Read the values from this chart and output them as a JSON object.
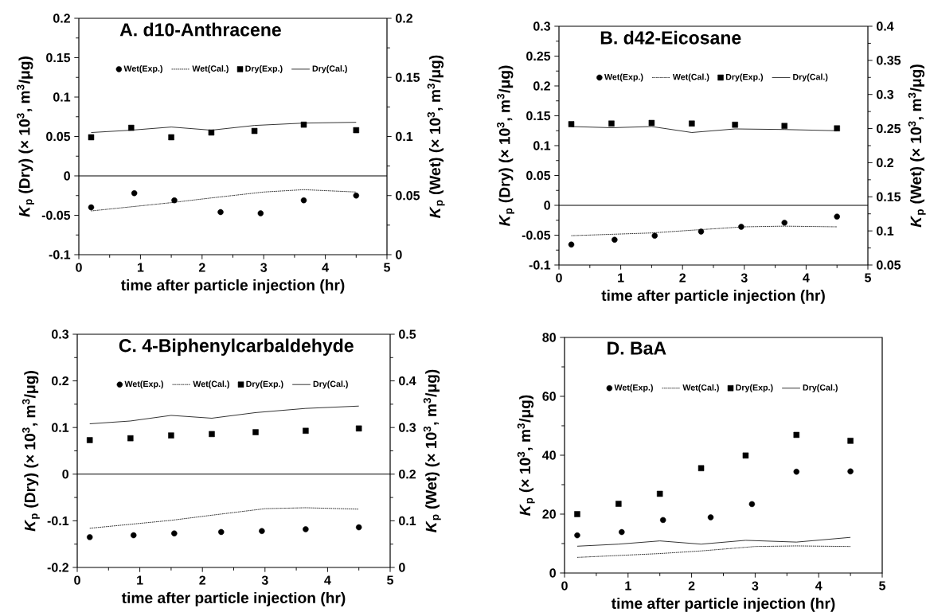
{
  "chart_data": [
    {
      "type": "line",
      "title": "A. d10-Anthracene",
      "xlabel": "time after particle injection (hr)",
      "ylabel": "*K*$_{p}$ (Dry) (× 10$^{3}$, m$^{3}$/μg)",
      "y2label": "*K*$_{p}$ (Wet) (× 10$^{3}$, m$^{3}$/μg)",
      "xlim": [
        0,
        5
      ],
      "xticks": [
        0,
        1,
        2,
        3,
        4,
        5
      ],
      "ylim": [
        -0.1,
        0.2
      ],
      "yticks": [
        -0.1,
        -0.05,
        0,
        0.05,
        0.1,
        0.15,
        0.2
      ],
      "y2lim": [
        0,
        0.2
      ],
      "y2ticks": [
        0,
        0.05,
        0.1,
        0.15,
        0.2
      ],
      "legend": "top",
      "ref_lines": [
        {
          "axis": "y",
          "value": 0,
          "color": "#000000"
        }
      ],
      "series": [
        {
          "name": "Wet(Exp.)",
          "type": "scatter",
          "marker": "circle",
          "axis": "y2",
          "color": "#000000",
          "x": [
            0.2,
            0.9,
            1.55,
            2.3,
            2.95,
            3.65,
            4.5
          ],
          "values": [
            0.04,
            0.052,
            0.046,
            0.036,
            0.035,
            0.046,
            0.05
          ]
        },
        {
          "name": "Wet(Cal.)",
          "line_style": "dotted",
          "axis": "y2",
          "color": "#000000",
          "x": [
            0.2,
            1.5,
            2.15,
            3.0,
            3.65,
            4.5
          ],
          "values": [
            0.037,
            0.044,
            0.048,
            0.053,
            0.055,
            0.053
          ]
        },
        {
          "name": "Dry(Exp.)",
          "type": "scatter",
          "marker": "square",
          "color": "#000000",
          "x": [
            0.2,
            0.85,
            1.5,
            2.15,
            2.85,
            3.65,
            4.5
          ],
          "values": [
            0.049,
            0.061,
            0.049,
            0.055,
            0.057,
            0.065,
            0.058
          ]
        },
        {
          "name": "Dry(Cal.)",
          "line_style": "solid",
          "color": "#000000",
          "x": [
            0.2,
            0.85,
            1.5,
            2.15,
            2.85,
            3.65,
            4.5
          ],
          "values": [
            0.055,
            0.058,
            0.062,
            0.058,
            0.064,
            0.067,
            0.068
          ]
        }
      ]
    },
    {
      "type": "line",
      "title": "B. d42-Eicosane",
      "xlabel": "time after particle injection (hr)",
      "ylabel": "*K*$_{p}$ (Dry) (× 10$^{3}$, m$^{3}$/μg)",
      "y2label": "*K*$_{p}$ (Wet) (× 10$^{3}$, m$^{3}$/μg)",
      "xlim": [
        0,
        5
      ],
      "xticks": [
        0,
        1,
        2,
        3,
        4,
        5
      ],
      "ylim": [
        -0.1,
        0.3
      ],
      "yticks": [
        -0.1,
        -0.05,
        0,
        0.05,
        0.1,
        0.15,
        0.2,
        0.25,
        0.3
      ],
      "y2lim": [
        0.05,
        0.4
      ],
      "y2ticks": [
        0.05,
        0.1,
        0.15,
        0.2,
        0.25,
        0.3,
        0.35,
        0.4
      ],
      "legend": "top",
      "ref_lines": [
        {
          "axis": "y",
          "value": 0,
          "color": "#000000"
        }
      ],
      "series": [
        {
          "name": "Wet(Exp.)",
          "type": "scatter",
          "marker": "circle",
          "axis": "y2",
          "color": "#000000",
          "x": [
            0.2,
            0.9,
            1.55,
            2.3,
            2.95,
            3.65,
            4.5
          ],
          "values": [
            0.08,
            0.087,
            0.093,
            0.099,
            0.106,
            0.112,
            0.121
          ]
        },
        {
          "name": "Wet(Cal.)",
          "line_style": "dotted",
          "axis": "y2",
          "color": "#000000",
          "x": [
            0.2,
            1.5,
            2.15,
            3.0,
            3.65,
            4.5
          ],
          "values": [
            0.093,
            0.097,
            0.101,
            0.106,
            0.107,
            0.106
          ]
        },
        {
          "name": "Dry(Exp.)",
          "type": "scatter",
          "marker": "square",
          "color": "#000000",
          "x": [
            0.2,
            0.85,
            1.5,
            2.15,
            2.85,
            3.65,
            4.5
          ],
          "values": [
            0.136,
            0.137,
            0.138,
            0.137,
            0.135,
            0.133,
            0.129
          ]
        },
        {
          "name": "Dry(Cal.)",
          "line_style": "solid",
          "color": "#000000",
          "x": [
            0.2,
            0.85,
            1.5,
            2.15,
            2.85,
            3.65,
            4.5
          ],
          "values": [
            0.132,
            0.13,
            0.132,
            0.122,
            0.128,
            0.127,
            0.125
          ]
        }
      ]
    },
    {
      "type": "line",
      "title": "C. 4-Biphenylcarbaldehyde",
      "xlabel": "time after particle injection (hr)",
      "ylabel": "*K*$_{p}$ (Dry) (× 10$^{3}$, m$^{3}$/μg)",
      "y2label": "*K*$_{p}$ (Wet) (× 10$^{3}$, m$^{3}$/μg)",
      "xlim": [
        0,
        5
      ],
      "xticks": [
        0,
        1,
        2,
        3,
        4,
        5
      ],
      "ylim": [
        -0.2,
        0.3
      ],
      "yticks": [
        -0.2,
        -0.1,
        0,
        0.1,
        0.2,
        0.3
      ],
      "y2lim": [
        0,
        0.5
      ],
      "y2ticks": [
        0,
        0.1,
        0.2,
        0.3,
        0.4,
        0.5
      ],
      "legend": "top",
      "ref_lines": [
        {
          "axis": "y",
          "value": 0,
          "color": "#000000"
        }
      ],
      "series": [
        {
          "name": "Wet(Exp.)",
          "type": "scatter",
          "marker": "circle",
          "axis": "y2",
          "color": "#000000",
          "x": [
            0.2,
            0.9,
            1.55,
            2.3,
            2.95,
            3.65,
            4.5
          ],
          "values": [
            0.065,
            0.069,
            0.073,
            0.076,
            0.078,
            0.082,
            0.086
          ]
        },
        {
          "name": "Wet(Cal.)",
          "line_style": "dotted",
          "axis": "y2",
          "color": "#000000",
          "x": [
            0.2,
            1.5,
            2.15,
            3.0,
            3.65,
            4.5
          ],
          "values": [
            0.084,
            0.101,
            0.112,
            0.126,
            0.128,
            0.125
          ]
        },
        {
          "name": "Dry(Exp.)",
          "type": "scatter",
          "marker": "square",
          "color": "#000000",
          "x": [
            0.2,
            0.85,
            1.5,
            2.15,
            2.85,
            3.65,
            4.5
          ],
          "values": [
            0.073,
            0.077,
            0.083,
            0.086,
            0.09,
            0.093,
            0.098
          ]
        },
        {
          "name": "Dry(Cal.)",
          "line_style": "solid",
          "color": "#000000",
          "x": [
            0.2,
            0.85,
            1.5,
            2.15,
            2.85,
            3.65,
            4.5
          ],
          "values": [
            0.108,
            0.114,
            0.126,
            0.12,
            0.132,
            0.141,
            0.146
          ]
        }
      ]
    },
    {
      "type": "line",
      "title": "D. BaA",
      "xlabel": "time after particle injection (hr)",
      "ylabel": "*K*$_{p}$ (× 10$^{3}$, m$^{3}$/μg)",
      "xlim": [
        0,
        5
      ],
      "xticks": [
        0,
        1,
        2,
        3,
        4,
        5
      ],
      "ylim": [
        0,
        80
      ],
      "yticks": [
        0,
        20,
        40,
        60,
        80
      ],
      "legend": "top",
      "series": [
        {
          "name": "Wet(Exp.)",
          "type": "scatter",
          "marker": "circle",
          "color": "#000000",
          "x": [
            0.2,
            0.9,
            1.55,
            2.3,
            2.95,
            3.65,
            4.5
          ],
          "values": [
            12.8,
            13.9,
            18.0,
            18.9,
            23.4,
            34.4,
            34.5
          ]
        },
        {
          "name": "Wet(Cal.)",
          "line_style": "dotted",
          "color": "#000000",
          "x": [
            0.2,
            1.5,
            2.15,
            3.0,
            3.65,
            4.5
          ],
          "values": [
            5.3,
            6.6,
            7.5,
            9.0,
            9.2,
            9.0
          ]
        },
        {
          "name": "Dry(Exp.)",
          "type": "scatter",
          "marker": "square",
          "color": "#000000",
          "x": [
            0.2,
            0.85,
            1.5,
            2.15,
            2.85,
            3.65,
            4.5
          ],
          "values": [
            20.0,
            23.5,
            26.9,
            35.6,
            39.9,
            46.9,
            44.9
          ]
        },
        {
          "name": "Dry(Cal.)",
          "line_style": "solid",
          "color": "#000000",
          "x": [
            0.2,
            0.85,
            1.5,
            2.15,
            2.85,
            3.65,
            4.5
          ],
          "values": [
            9.1,
            9.8,
            10.9,
            9.8,
            11.1,
            10.5,
            12.1
          ]
        }
      ]
    }
  ]
}
